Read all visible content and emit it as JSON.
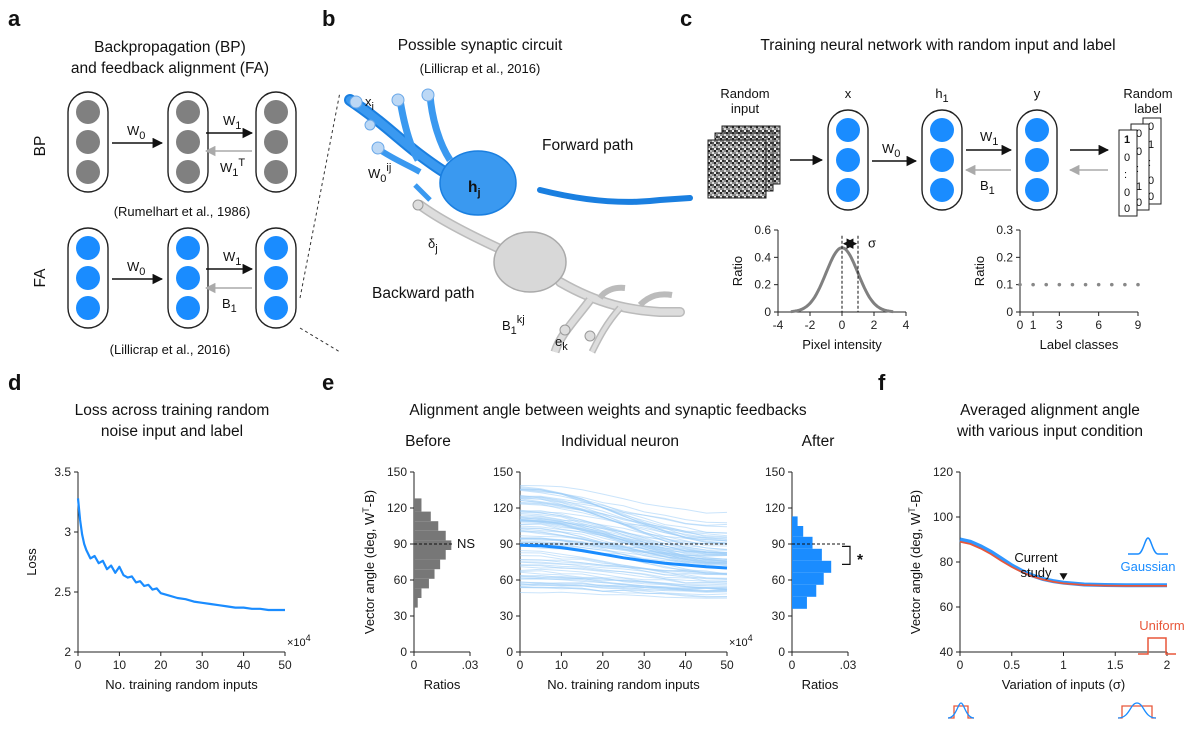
{
  "panels": {
    "a": {
      "letter": "a",
      "title_line1": "Backpropagation (BP)",
      "title_line2": "and feedback alignment (FA)",
      "bp_label": "BP",
      "fa_label": "FA",
      "w0": "W",
      "w0_sub": "0",
      "w1": "W",
      "w1_sub": "1",
      "w1t": "W",
      "w1t_sub": "1",
      "w1t_sup": "T",
      "b1": "B",
      "b1_sub": "1",
      "bp_citation": "(Rumelhart et al., 1986)",
      "fa_citation": "(Lillicrap et al., 2016)",
      "bp_color": "#808080",
      "fa_color": "#1a8cff"
    },
    "b": {
      "letter": "b",
      "title": "Possible synaptic circuit",
      "citation": "(Lillicrap et al., 2016)",
      "forward": "Forward path",
      "backward": "Backward path",
      "xi": "x",
      "xi_sub": "i",
      "w0ij": "W",
      "w0ij_sub": "0",
      "w0ij_sup": "ij",
      "hj": "h",
      "hj_sub": "j",
      "dj": "δ",
      "dj_sub": "j",
      "b1kj": "B",
      "b1kj_sub": "1",
      "b1kj_sup": "kj",
      "ek": "e",
      "ek_sub": "k"
    },
    "c": {
      "letter": "c",
      "title": "Training neural network with random input and label",
      "random_input_1": "Random",
      "random_input_2": "input",
      "random_label_1": "Random",
      "random_label_2": "label",
      "x": "x",
      "h1": "h",
      "h1_sub": "1",
      "y": "y",
      "w0": "W",
      "w0_sub": "0",
      "w1": "W",
      "w1_sub": "1",
      "b1": "B",
      "b1_sub": "1",
      "sigma": "σ"
    },
    "d": {
      "letter": "d",
      "title_line1": "Loss across training random",
      "title_line2": "noise input and label"
    },
    "e": {
      "letter": "e",
      "title": "Alignment angle between weights and synaptic feedbacks",
      "before": "Before",
      "individual": "Individual neuron",
      "after": "After",
      "ns": "NS",
      "star": "*"
    },
    "f": {
      "letter": "f",
      "title_line1": "Averaged alignment angle",
      "title_line2": "with various input condition",
      "current_1": "Current",
      "current_2": "study",
      "gaussian": "Gaussian",
      "uniform": "Uniform"
    }
  },
  "chart_data": [
    {
      "id": "c-pixel",
      "type": "line",
      "xlabel": "Pixel intensity",
      "ylabel": "Ratio",
      "xlim": [
        -4,
        4
      ],
      "ylim": [
        0,
        0.6
      ],
      "xticks": [
        "-4",
        "-2",
        "0",
        "2",
        "4"
      ],
      "yticks": [
        "0",
        "0.2",
        "0.4",
        "0.6"
      ],
      "curve": "gaussian",
      "mean": 0,
      "sigma": 1,
      "peak": 0.47
    },
    {
      "id": "c-label",
      "type": "scatter",
      "xlabel": "Label classes",
      "ylabel": "Ratio",
      "xlim": [
        0,
        9
      ],
      "ylim": [
        0,
        0.3
      ],
      "xticks": [
        "0",
        "1",
        "3",
        "6",
        "9"
      ],
      "yticks": [
        "0",
        "0.1",
        "0.2",
        "0.3"
      ],
      "x": [
        0,
        1,
        2,
        3,
        4,
        5,
        6,
        7,
        8,
        9
      ],
      "y": [
        0.1,
        0.1,
        0.1,
        0.1,
        0.1,
        0.1,
        0.1,
        0.1,
        0.1,
        0.1
      ]
    },
    {
      "id": "d-loss",
      "type": "line",
      "xlabel": "No. training random inputs",
      "ylabel": "Loss",
      "x_multiplier": "×10",
      "x_multiplier_exp": "4",
      "xlim": [
        0,
        50
      ],
      "ylim": [
        2,
        3.5
      ],
      "xticks": [
        "0",
        "10",
        "20",
        "30",
        "40",
        "50"
      ],
      "yticks": [
        "2",
        "2.5",
        "3",
        "3.5"
      ],
      "x": [
        0,
        0.5,
        1,
        1.5,
        2,
        3,
        4,
        5,
        6,
        7,
        8,
        9,
        10,
        11,
        12,
        13,
        14,
        15,
        16,
        17,
        18,
        19,
        20,
        22,
        24,
        26,
        28,
        30,
        32,
        34,
        36,
        38,
        40,
        42,
        44,
        46,
        48,
        50
      ],
      "y": [
        3.28,
        3.1,
        2.98,
        2.9,
        2.85,
        2.78,
        2.8,
        2.74,
        2.76,
        2.69,
        2.72,
        2.66,
        2.71,
        2.64,
        2.62,
        2.63,
        2.58,
        2.59,
        2.55,
        2.56,
        2.52,
        2.53,
        2.49,
        2.47,
        2.45,
        2.44,
        2.42,
        2.41,
        2.4,
        2.39,
        2.38,
        2.37,
        2.37,
        2.36,
        2.36,
        2.35,
        2.35,
        2.35
      ]
    },
    {
      "id": "e-before",
      "type": "bar",
      "ylabel": "Vector angle (deg, W",
      "ylabel_sup": "T",
      "ylabel_end": "-B)",
      "xlabel": "Ratios",
      "xlim": [
        0,
        0.03
      ],
      "ylim": [
        0,
        150
      ],
      "xticks": [
        "0",
        ".03"
      ],
      "yticks": [
        "0",
        "30",
        "60",
        "90",
        "120",
        "150"
      ],
      "bin_edges": [
        37,
        45,
        53,
        61,
        69,
        77,
        85,
        93,
        101,
        109,
        117,
        128
      ],
      "values": [
        0.002,
        0.004,
        0.008,
        0.011,
        0.014,
        0.017,
        0.02,
        0.017,
        0.013,
        0.009,
        0.004
      ]
    },
    {
      "id": "e-individual",
      "type": "line",
      "xlabel": "No. training random inputs",
      "x_multiplier": "×10",
      "x_multiplier_exp": "4",
      "xlim": [
        0,
        50
      ],
      "ylim": [
        0,
        150
      ],
      "xticks": [
        "0",
        "10",
        "20",
        "30",
        "40",
        "50"
      ],
      "yticks": [
        "0",
        "30",
        "60",
        "90",
        "120",
        "150"
      ],
      "mean_x": [
        0,
        5,
        10,
        15,
        20,
        25,
        30,
        35,
        40,
        45,
        50
      ],
      "mean_y": [
        89,
        88.5,
        87,
        84.5,
        81.5,
        78.5,
        76,
        74,
        72.5,
        71,
        70
      ]
    },
    {
      "id": "e-after",
      "type": "bar",
      "xlabel": "Ratios",
      "xlim": [
        0,
        0.03
      ],
      "ylim": [
        0,
        150
      ],
      "xticks": [
        "0",
        ".03"
      ],
      "yticks": [
        "0",
        "30",
        "60",
        "90",
        "120",
        "150"
      ],
      "bin_edges": [
        36,
        46,
        56,
        66,
        76,
        86,
        96,
        105,
        113
      ],
      "values": [
        0.008,
        0.013,
        0.017,
        0.021,
        0.016,
        0.011,
        0.006,
        0.003
      ]
    },
    {
      "id": "f-avg",
      "type": "line",
      "xlabel": "Variation of inputs (σ)",
      "ylabel": "Vector angle (deg, W",
      "ylabel_sup": "T",
      "ylabel_end": "-B)",
      "xlim": [
        0,
        2
      ],
      "ylim": [
        40,
        120
      ],
      "xticks": [
        "0",
        "0.5",
        "1",
        "1.5",
        "2"
      ],
      "yticks": [
        "40",
        "60",
        "80",
        "100",
        "120"
      ],
      "series": [
        {
          "name": "Gaussian",
          "color": "#1a8cff",
          "x": [
            0,
            0.1,
            0.2,
            0.3,
            0.4,
            0.5,
            0.6,
            0.7,
            0.8,
            0.9,
            1,
            1.2,
            1.4,
            1.6,
            1.8,
            2
          ],
          "y": [
            90,
            89,
            87,
            84.5,
            81.5,
            78.5,
            76,
            74,
            72.5,
            71.5,
            70.8,
            70,
            69.8,
            69.7,
            69.7,
            69.7
          ]
        },
        {
          "name": "Uniform",
          "color": "#e8573a",
          "x": [
            0,
            0.1,
            0.2,
            0.3,
            0.4,
            0.5,
            0.6,
            0.7,
            0.8,
            0.9,
            1,
            1.2,
            1.4,
            1.6,
            1.8,
            2
          ],
          "y": [
            89,
            88,
            86,
            83.5,
            80.5,
            77.8,
            75.5,
            73.6,
            72.2,
            71.2,
            70.5,
            69.8,
            69.5,
            69.4,
            69.4,
            69.4
          ]
        }
      ],
      "annotation_x": 1
    }
  ]
}
